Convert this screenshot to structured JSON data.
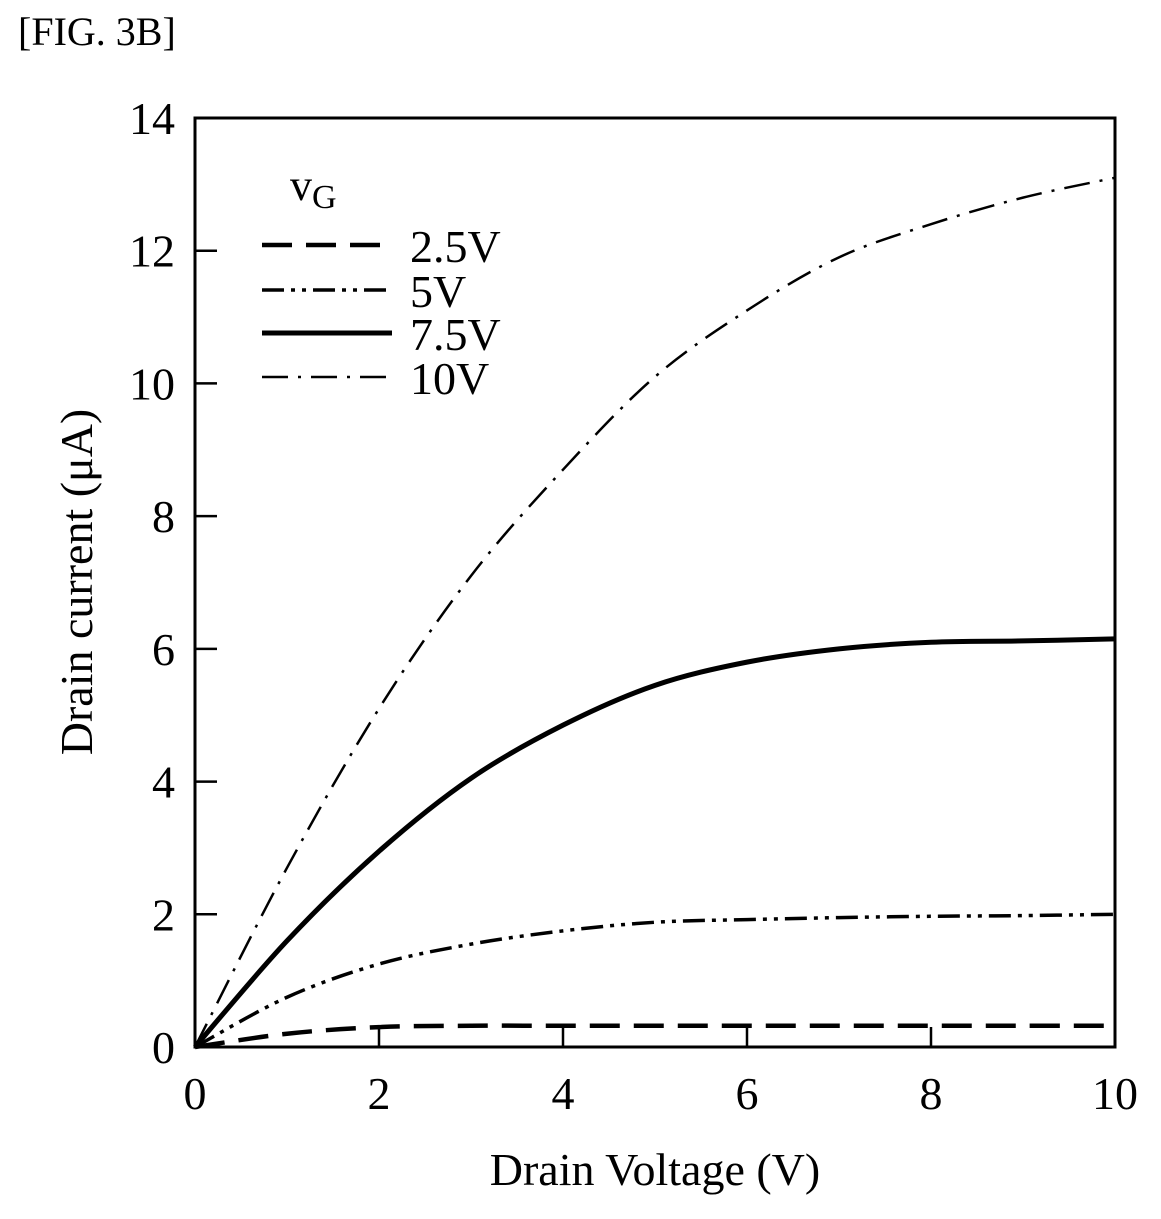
{
  "figure_label": "[FIG. 3B]",
  "chart_data": {
    "type": "line",
    "title": "",
    "xlabel": "Drain Voltage (V)",
    "ylabel": "Drain current (μA)",
    "xlim": [
      0,
      10
    ],
    "ylim": [
      0,
      14
    ],
    "xticks": [
      0,
      2,
      4,
      6,
      8,
      10
    ],
    "yticks": [
      0,
      2,
      4,
      6,
      8,
      10,
      12,
      14
    ],
    "xtick_labels": [
      "0",
      "2",
      "4",
      "6",
      "8",
      "10"
    ],
    "ytick_labels": [
      "0",
      "2",
      "4",
      "6",
      "8",
      "10",
      "12",
      "14"
    ],
    "grid": false,
    "legend": {
      "title_main": "V",
      "title_sub": "G",
      "placement": "top-left"
    },
    "x": [
      0,
      1,
      2,
      3,
      4,
      5,
      6,
      7,
      8,
      9,
      10
    ],
    "series": [
      {
        "name": "2.5V",
        "style": "dashed",
        "values": [
          0,
          0.2,
          0.3,
          0.32,
          0.32,
          0.32,
          0.32,
          0.32,
          0.32,
          0.32,
          0.32
        ]
      },
      {
        "name": "5V",
        "style": "dash-dot-dot",
        "values": [
          0,
          0.75,
          1.25,
          1.55,
          1.75,
          1.88,
          1.92,
          1.95,
          1.97,
          1.98,
          2.0
        ]
      },
      {
        "name": "7.5V",
        "style": "solid",
        "values": [
          0,
          1.6,
          2.95,
          4.05,
          4.85,
          5.45,
          5.8,
          6.0,
          6.1,
          6.12,
          6.15
        ]
      },
      {
        "name": "10V",
        "style": "dash-dot",
        "values": [
          0,
          2.7,
          5.1,
          7.1,
          8.7,
          10.1,
          11.1,
          11.9,
          12.4,
          12.8,
          13.1
        ]
      }
    ],
    "line_color": "#000000"
  }
}
